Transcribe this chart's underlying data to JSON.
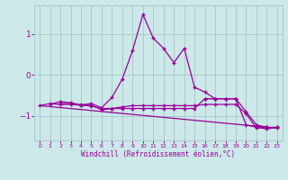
{
  "xlabel": "Windchill (Refroidissement éolien,°C)",
  "xlim": [
    -0.5,
    23.5
  ],
  "ylim": [
    -1.6,
    1.7
  ],
  "yticks": [
    -1,
    0,
    1
  ],
  "xticks": [
    0,
    1,
    2,
    3,
    4,
    5,
    6,
    7,
    8,
    9,
    10,
    11,
    12,
    13,
    14,
    15,
    16,
    17,
    18,
    19,
    20,
    21,
    22,
    23
  ],
  "bg_color": "#cce8e8",
  "grid_color": "#aacccc",
  "line_color": "#990099",
  "line1_x": [
    1,
    2,
    3,
    4,
    5,
    6,
    7,
    8,
    9,
    10,
    11,
    12,
    13,
    14,
    15,
    16,
    17,
    18,
    19
  ],
  "line1_y": [
    -0.72,
    -0.65,
    -0.68,
    -0.73,
    -0.7,
    -0.8,
    -0.55,
    -0.1,
    0.6,
    1.48,
    0.9,
    0.65,
    0.3,
    0.65,
    -0.3,
    -0.42,
    -0.58,
    -0.58,
    -0.58
  ],
  "line2_x": [
    0,
    1,
    2,
    3,
    4,
    5,
    6,
    7,
    8,
    9,
    10,
    11,
    12,
    13,
    14,
    15,
    16,
    17,
    18,
    19,
    20,
    21,
    22,
    23
  ],
  "line2_y": [
    -0.75,
    -0.7,
    -0.72,
    -0.72,
    -0.74,
    -0.74,
    -0.85,
    -0.82,
    -0.78,
    -0.75,
    -0.75,
    -0.75,
    -0.75,
    -0.75,
    -0.75,
    -0.75,
    -0.72,
    -0.72,
    -0.72,
    -0.72,
    -0.95,
    -1.3,
    -1.28,
    -1.3
  ],
  "line3_x": [
    0,
    23
  ],
  "line3_y": [
    -0.75,
    -1.3
  ],
  "line4_x": [
    2,
    3,
    4,
    5,
    6,
    7,
    8,
    9,
    10,
    11,
    12,
    13,
    14,
    15,
    16,
    17,
    18,
    19,
    20,
    21,
    22,
    23
  ],
  "line4_y": [
    -0.7,
    -0.7,
    -0.74,
    -0.76,
    -0.82,
    -0.82,
    -0.82,
    -0.82,
    -0.82,
    -0.82,
    -0.82,
    -0.82,
    -0.82,
    -0.82,
    -0.58,
    -0.58,
    -0.58,
    -0.58,
    -0.9,
    -1.22,
    -1.28,
    -1.28
  ],
  "line5_x": [
    16,
    17,
    18,
    19,
    20,
    21,
    22,
    23
  ],
  "line5_y": [
    -0.58,
    -0.58,
    -0.58,
    -0.58,
    -1.22,
    -1.28,
    -1.32,
    -1.28
  ],
  "linewidth": 0.9,
  "marker_size": 2.5
}
